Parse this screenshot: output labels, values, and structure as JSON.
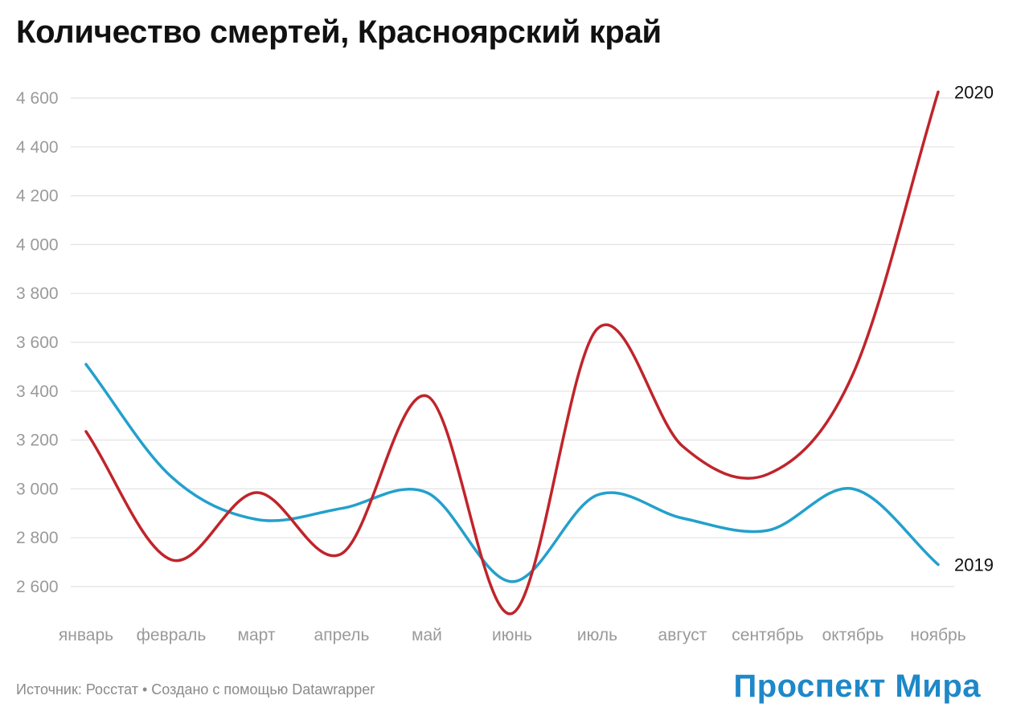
{
  "chart_data": {
    "type": "line",
    "title": "Количество смертей, Красноярский край",
    "categories": [
      "январь",
      "февраль",
      "март",
      "апрель",
      "май",
      "июнь",
      "июль",
      "август",
      "сентябрь",
      "октябрь",
      "ноябрь"
    ],
    "series": [
      {
        "name": "2019",
        "color": "#23a0cc",
        "values": [
          3510,
          3050,
          2875,
          2920,
          2985,
          2620,
          2975,
          2880,
          2830,
          3000,
          2690
        ]
      },
      {
        "name": "2020",
        "color": "#c0242b",
        "values": [
          3235,
          2710,
          2985,
          2735,
          3380,
          2490,
          3655,
          3175,
          3060,
          3470,
          4625
        ]
      }
    ],
    "ylim": [
      2600,
      4600
    ],
    "y_ticks": [
      2600,
      2800,
      3000,
      3200,
      3400,
      3600,
      3800,
      4000,
      4200,
      4400,
      4600
    ],
    "y_tick_labels": [
      "2 600",
      "2 800",
      "3 000",
      "3 200",
      "3 400",
      "3 600",
      "3 800",
      "4 000",
      "4 200",
      "4 400",
      "4 600"
    ],
    "xlabel": "",
    "ylabel": "",
    "grid": true,
    "legend": "end-of-line labels"
  },
  "footer": {
    "source": "Источник: Росстат • Создано с помощью Datawrapper",
    "brand": "Проспект Мира",
    "brand_color": "#1e88c8"
  }
}
